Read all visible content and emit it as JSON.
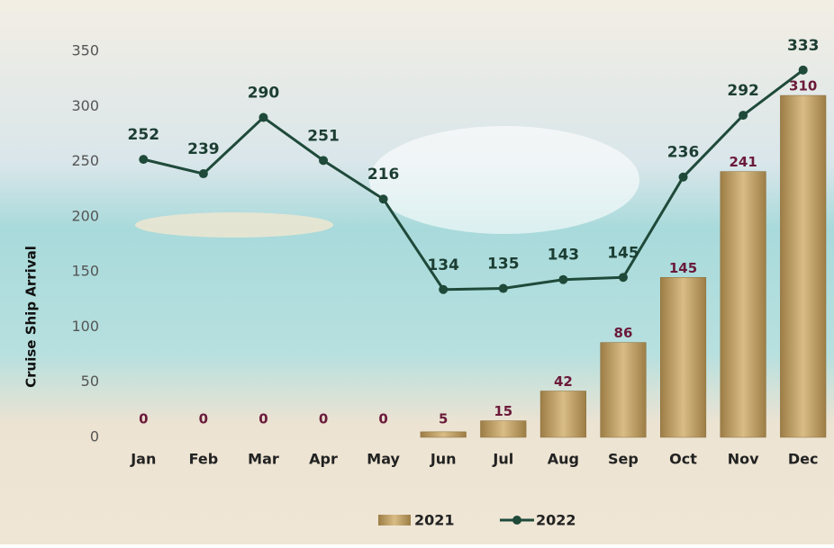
{
  "chart_data": {
    "type": "combo",
    "y_label": "Cruise Ship Arrival",
    "categories": [
      "Jan",
      "Feb",
      "Mar",
      "Apr",
      "May",
      "Jun",
      "Jul",
      "Aug",
      "Sep",
      "Oct",
      "Nov",
      "Dec"
    ],
    "series": [
      {
        "name": "2021",
        "type": "bar",
        "color": "#c4a469",
        "values": [
          0,
          0,
          0,
          0,
          0,
          5,
          15,
          42,
          86,
          145,
          241,
          310
        ]
      },
      {
        "name": "2022",
        "type": "line",
        "color": "#1f4a3a",
        "values": [
          252,
          239,
          290,
          251,
          216,
          134,
          135,
          143,
          145,
          236,
          292,
          333
        ]
      }
    ],
    "ylim": [
      0,
      350
    ],
    "yticks": [
      0,
      50,
      100,
      150,
      200,
      250,
      300,
      350
    ],
    "grid": false,
    "legend": "bottom"
  }
}
